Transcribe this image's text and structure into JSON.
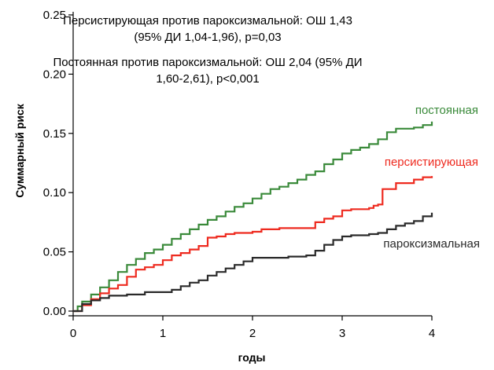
{
  "chart_data": {
    "type": "line",
    "step": true,
    "title": "",
    "xlabel": "годы",
    "ylabel": "Суммарный риск",
    "xlim": [
      0,
      4
    ],
    "ylim": [
      0,
      0.25
    ],
    "xticks": [
      0,
      1,
      2,
      3,
      4
    ],
    "xtick_labels": [
      "0",
      "1",
      "2",
      "3",
      "4"
    ],
    "yticks": [
      0,
      0.05,
      0.1,
      0.15,
      0.2,
      0.25
    ],
    "ytick_labels": [
      "0.00",
      "0.05",
      "0.10",
      "0.15",
      "0.20",
      "0.25"
    ],
    "grid": false,
    "annotations": [
      "Персистирующая против пароксизмальной: ОШ 1,43",
      "(95% ДИ 1,04-1,96), p=0,03",
      "Постоянная против пароксизмальной: ОШ 2,04 (95% ДИ",
      "1,60-2,61), p<0,001"
    ],
    "series": [
      {
        "name": "постоянная",
        "color": "#3a8a3a",
        "x": [
          0,
          0.05,
          0.1,
          0.2,
          0.3,
          0.4,
          0.5,
          0.6,
          0.7,
          0.8,
          0.9,
          1.0,
          1.1,
          1.2,
          1.3,
          1.4,
          1.5,
          1.6,
          1.7,
          1.8,
          1.9,
          2.0,
          2.1,
          2.2,
          2.3,
          2.4,
          2.5,
          2.6,
          2.7,
          2.8,
          2.9,
          3.0,
          3.1,
          3.2,
          3.3,
          3.4,
          3.5,
          3.6,
          3.7,
          3.8,
          3.9,
          4.0
        ],
        "y": [
          0,
          0.004,
          0.008,
          0.014,
          0.02,
          0.026,
          0.033,
          0.039,
          0.044,
          0.049,
          0.052,
          0.056,
          0.061,
          0.065,
          0.069,
          0.073,
          0.077,
          0.08,
          0.084,
          0.088,
          0.091,
          0.095,
          0.099,
          0.103,
          0.105,
          0.108,
          0.111,
          0.115,
          0.118,
          0.124,
          0.128,
          0.133,
          0.136,
          0.138,
          0.141,
          0.145,
          0.151,
          0.154,
          0.154,
          0.155,
          0.157,
          0.16
        ]
      },
      {
        "name": "персистирующая",
        "color": "#ee2a1f",
        "x": [
          0,
          0.1,
          0.2,
          0.3,
          0.4,
          0.5,
          0.6,
          0.7,
          0.8,
          0.9,
          1.0,
          1.1,
          1.2,
          1.3,
          1.4,
          1.5,
          1.6,
          1.7,
          1.8,
          1.9,
          2.0,
          2.1,
          2.2,
          2.3,
          2.4,
          2.5,
          2.6,
          2.7,
          2.8,
          2.9,
          3.0,
          3.1,
          3.2,
          3.3,
          3.35,
          3.4,
          3.45,
          3.5,
          3.6,
          3.7,
          3.8,
          3.9,
          4.0
        ],
        "y": [
          0,
          0.005,
          0.01,
          0.015,
          0.019,
          0.022,
          0.029,
          0.035,
          0.037,
          0.039,
          0.043,
          0.047,
          0.049,
          0.052,
          0.055,
          0.062,
          0.063,
          0.065,
          0.066,
          0.066,
          0.067,
          0.069,
          0.069,
          0.07,
          0.07,
          0.07,
          0.07,
          0.075,
          0.078,
          0.08,
          0.085,
          0.086,
          0.086,
          0.087,
          0.089,
          0.09,
          0.103,
          0.103,
          0.108,
          0.108,
          0.111,
          0.113,
          0.114
        ]
      },
      {
        "name": "пароксизмальная",
        "color": "#2a2a2a",
        "x": [
          0,
          0.1,
          0.2,
          0.3,
          0.4,
          0.5,
          0.6,
          0.7,
          0.8,
          0.9,
          1.0,
          1.1,
          1.2,
          1.3,
          1.4,
          1.5,
          1.6,
          1.7,
          1.8,
          1.9,
          2.0,
          2.1,
          2.2,
          2.3,
          2.4,
          2.5,
          2.6,
          2.7,
          2.8,
          2.9,
          3.0,
          3.1,
          3.2,
          3.3,
          3.4,
          3.5,
          3.6,
          3.7,
          3.8,
          3.9,
          4.0
        ],
        "y": [
          0,
          0.006,
          0.009,
          0.011,
          0.013,
          0.013,
          0.014,
          0.014,
          0.016,
          0.016,
          0.016,
          0.018,
          0.021,
          0.024,
          0.026,
          0.03,
          0.033,
          0.036,
          0.039,
          0.042,
          0.045,
          0.045,
          0.045,
          0.045,
          0.046,
          0.046,
          0.047,
          0.051,
          0.056,
          0.06,
          0.063,
          0.064,
          0.064,
          0.065,
          0.066,
          0.069,
          0.072,
          0.074,
          0.076,
          0.08,
          0.083
        ]
      }
    ]
  }
}
